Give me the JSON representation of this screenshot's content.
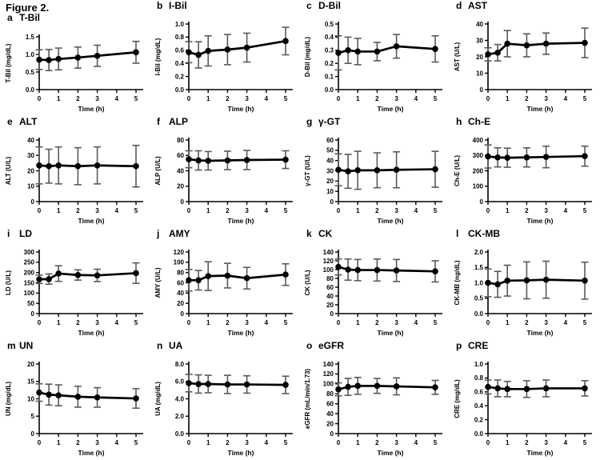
{
  "figure_title": "Figure 2.",
  "chart_data": [
    {
      "type": "line",
      "letter": "a",
      "title": "T-Bil",
      "ylabel": "T-Bil (mg/dL)",
      "xlabel": "Time (h)",
      "ylim": [
        0,
        1.5
      ],
      "yticks": [
        "0.0",
        "0.5",
        "1.0",
        "1.5"
      ],
      "xticks": [
        "0",
        "1",
        "2",
        "3",
        "4",
        "5"
      ],
      "x": [
        0,
        0.5,
        1,
        2,
        3,
        5
      ],
      "values": [
        0.85,
        0.84,
        0.87,
        0.91,
        0.96,
        1.06
      ],
      "errors": [
        0.28,
        0.3,
        0.31,
        0.3,
        0.3,
        0.31
      ]
    },
    {
      "type": "line",
      "letter": "b",
      "title": "I-Bil",
      "ylabel": "I-Bil (mg/dL)",
      "xlabel": "Time (h)",
      "ylim": [
        0,
        1.0
      ],
      "yticks": [
        "0.0",
        "0.2",
        "0.4",
        "0.6",
        "0.8",
        "1.0"
      ],
      "xticks": [
        "0",
        "1",
        "2",
        "3",
        "4",
        "5"
      ],
      "x": [
        0,
        0.5,
        1,
        2,
        3,
        5
      ],
      "values": [
        0.57,
        0.53,
        0.59,
        0.61,
        0.64,
        0.74
      ],
      "errors": [
        0.16,
        0.2,
        0.23,
        0.23,
        0.22,
        0.21
      ]
    },
    {
      "type": "line",
      "letter": "c",
      "title": "D-Bil",
      "ylabel": "D-Bil (mg/dL)",
      "xlabel": "Time (h)",
      "ylim": [
        0,
        0.5
      ],
      "yticks": [
        "0.0",
        "0.1",
        "0.2",
        "0.3",
        "0.4",
        "0.5"
      ],
      "xticks": [
        "0",
        "1",
        "2",
        "3",
        "4",
        "5"
      ],
      "x": [
        0,
        0.5,
        1,
        2,
        3,
        5
      ],
      "values": [
        0.28,
        0.3,
        0.29,
        0.29,
        0.33,
        0.31
      ],
      "errors": [
        0.13,
        0.1,
        0.1,
        0.07,
        0.09,
        0.1
      ]
    },
    {
      "type": "line",
      "letter": "d",
      "title": "AST",
      "ylabel": "AST (U/L)",
      "xlabel": "Time (h)",
      "ylim": [
        0,
        40
      ],
      "yticks": [
        "0",
        "10",
        "20",
        "30",
        "40"
      ],
      "xticks": [
        "0",
        "1",
        "2",
        "3",
        "4",
        "5"
      ],
      "x": [
        0,
        0.5,
        1,
        2,
        3,
        5
      ],
      "values": [
        21.5,
        22.5,
        28,
        27,
        28,
        28.5
      ],
      "errors": [
        4,
        5,
        8,
        7,
        6.5,
        9
      ]
    },
    {
      "type": "line",
      "letter": "e",
      "title": "ALT",
      "ylabel": "ALT (U/L)",
      "xlabel": "Time (h)",
      "ylim": [
        0,
        40
      ],
      "yticks": [
        "0",
        "10",
        "20",
        "30",
        "40"
      ],
      "xticks": [
        "0",
        "1",
        "2",
        "3",
        "4",
        "5"
      ],
      "x": [
        0,
        0.5,
        1,
        2,
        3,
        5
      ],
      "values": [
        23.5,
        23,
        23.5,
        23,
        23.5,
        23
      ],
      "errors": [
        12,
        11,
        12,
        12,
        12,
        13.5
      ]
    },
    {
      "type": "line",
      "letter": "f",
      "title": "ALP",
      "ylabel": "ALP (U/L)",
      "xlabel": "Time (h)",
      "ylim": [
        0,
        80
      ],
      "yticks": [
        "0",
        "20",
        "40",
        "60",
        "80"
      ],
      "xticks": [
        "0",
        "1",
        "2",
        "3",
        "4",
        "5"
      ],
      "x": [
        0,
        0.5,
        1,
        2,
        3,
        5
      ],
      "values": [
        55,
        53.5,
        53,
        53.5,
        54,
        54.5
      ],
      "errors": [
        11,
        12.5,
        12,
        12,
        12.5,
        11.5
      ]
    },
    {
      "type": "line",
      "letter": "g",
      "title": "γ-GT",
      "ylabel": "γ-GT (U/L)",
      "xlabel": "Time (h)",
      "ylim": [
        0,
        60
      ],
      "yticks": [
        "0",
        "10",
        "20",
        "30",
        "40",
        "50",
        "60"
      ],
      "xticks": [
        "0",
        "1",
        "2",
        "3",
        "4",
        "5"
      ],
      "x": [
        0,
        0.5,
        1,
        2,
        3,
        5
      ],
      "values": [
        31,
        29.5,
        30.5,
        30.5,
        31,
        31.5
      ],
      "errors": [
        15.5,
        16.5,
        18.5,
        17,
        17.5,
        17.5
      ]
    },
    {
      "type": "line",
      "letter": "h",
      "title": "Ch-E",
      "ylabel": "Ch-E (U/L)",
      "xlabel": "Time (h)",
      "ylim": [
        0,
        400
      ],
      "yticks": [
        "0",
        "100",
        "200",
        "300",
        "400"
      ],
      "xticks": [
        "0",
        "1",
        "2",
        "3",
        "4",
        "5"
      ],
      "x": [
        0,
        0.5,
        1,
        2,
        3,
        5
      ],
      "values": [
        293,
        287,
        285,
        287,
        290,
        295
      ],
      "errors": [
        75,
        62,
        62,
        62,
        70,
        65
      ]
    },
    {
      "type": "line",
      "letter": "i",
      "title": "LD",
      "ylabel": "LD (U/L)",
      "xlabel": "Time (h)",
      "ylim": [
        0,
        300
      ],
      "yticks": [
        "0",
        "50",
        "100",
        "150",
        "200",
        "250",
        "300"
      ],
      "xticks": [
        "0",
        "1",
        "2",
        "3",
        "4",
        "5"
      ],
      "x": [
        0,
        0.5,
        1,
        2,
        3,
        5
      ],
      "values": [
        167,
        168,
        195,
        188,
        186,
        197
      ],
      "errors": [
        20,
        25,
        38,
        25,
        30,
        50
      ]
    },
    {
      "type": "line",
      "letter": "j",
      "title": "AMY",
      "ylabel": "AMY (U/L)",
      "xlabel": "Time (h)",
      "ylim": [
        0,
        120
      ],
      "yticks": [
        "0",
        "20",
        "40",
        "60",
        "80",
        "100",
        "120"
      ],
      "xticks": [
        "0",
        "1",
        "2",
        "3",
        "4",
        "5"
      ],
      "x": [
        0,
        0.5,
        1,
        2,
        3,
        5
      ],
      "values": [
        65,
        65,
        73,
        74,
        69,
        76
      ],
      "errors": [
        21,
        19,
        28,
        24,
        21,
        21
      ]
    },
    {
      "type": "line",
      "letter": "k",
      "title": "CK",
      "ylabel": "CK (U/L)",
      "xlabel": "Time (h)",
      "ylim": [
        0,
        140
      ],
      "yticks": [
        "0",
        "20",
        "40",
        "60",
        "80",
        "100",
        "120",
        "140"
      ],
      "xticks": [
        "0",
        "1",
        "2",
        "3",
        "4",
        "5"
      ],
      "x": [
        0,
        0.5,
        1,
        2,
        3,
        5
      ],
      "values": [
        106,
        100,
        99,
        99,
        98,
        96
      ],
      "errors": [
        18,
        24,
        24,
        25,
        25,
        24
      ]
    },
    {
      "type": "line",
      "letter": "l",
      "title": "CK-MB",
      "ylabel": "CK-MB (ng/dL)",
      "xlabel": "Time (h)",
      "ylim": [
        0,
        2.0
      ],
      "yticks": [
        "0.0",
        "0.5",
        "1.0",
        "1.5",
        "2.0"
      ],
      "xticks": [
        "0",
        "1",
        "2",
        "3",
        "4",
        "5"
      ],
      "x": [
        0,
        0.5,
        1,
        2,
        3,
        5
      ],
      "values": [
        1.0,
        0.95,
        1.07,
        1.08,
        1.1,
        1.07
      ],
      "errors": [
        0.45,
        0.42,
        0.5,
        0.6,
        0.6,
        0.6
      ]
    },
    {
      "type": "line",
      "letter": "m",
      "title": "UN",
      "ylabel": "UN (mg/dL)",
      "xlabel": "Time (h)",
      "ylim": [
        0,
        20
      ],
      "yticks": [
        "0",
        "5",
        "10",
        "15",
        "20"
      ],
      "xticks": [
        "0",
        "1",
        "2",
        "3",
        "4",
        "5"
      ],
      "x": [
        0,
        0.5,
        1,
        2,
        3,
        5
      ],
      "values": [
        11.8,
        11.2,
        11.0,
        10.6,
        10.4,
        10.1
      ],
      "errors": [
        2.5,
        3,
        3,
        3,
        2.8,
        2.8
      ]
    },
    {
      "type": "line",
      "letter": "n",
      "title": "UA",
      "ylabel": "UA (mg/dL)",
      "xlabel": "Time (h)",
      "ylim": [
        0,
        8
      ],
      "yticks": [
        "0.0",
        "2.0",
        "4.0",
        "6.0",
        "8.0"
      ],
      "xticks": [
        "0",
        "1",
        "2",
        "3",
        "4",
        "5"
      ],
      "x": [
        0,
        0.5,
        1,
        2,
        3,
        5
      ],
      "values": [
        5.8,
        5.7,
        5.7,
        5.65,
        5.65,
        5.6
      ],
      "errors": [
        1.0,
        1.05,
        1.0,
        1.05,
        1.0,
        1.0
      ]
    },
    {
      "type": "line",
      "letter": "o",
      "title": "eGFR",
      "ylabel": "eGFR (mL/min/1.73)",
      "xlabel": "Time (h)",
      "ylim": [
        0,
        140
      ],
      "yticks": [
        "0",
        "20",
        "40",
        "60",
        "80",
        "100",
        "120",
        "140"
      ],
      "xticks": [
        "0",
        "1",
        "2",
        "3",
        "4",
        "5"
      ],
      "x": [
        0,
        0.5,
        1,
        2,
        3,
        5
      ],
      "values": [
        89,
        94,
        96,
        96,
        95,
        93
      ],
      "errors": [
        13,
        17,
        17,
        15,
        17,
        14
      ]
    },
    {
      "type": "line",
      "letter": "p",
      "title": "CRE",
      "ylabel": "CRE (mg/dL)",
      "xlabel": "Time (h)",
      "ylim": [
        0,
        1.0
      ],
      "yticks": [
        "0.0",
        "0.2",
        "0.4",
        "0.6",
        "0.8",
        "1.0"
      ],
      "xticks": [
        "0",
        "1",
        "2",
        "3",
        "4",
        "5"
      ],
      "x": [
        0,
        0.5,
        1,
        2,
        3,
        5
      ],
      "values": [
        0.67,
        0.65,
        0.64,
        0.64,
        0.65,
        0.65
      ],
      "errors": [
        0.1,
        0.12,
        0.11,
        0.12,
        0.12,
        0.11
      ]
    }
  ],
  "colors": {
    "line": "#000000",
    "marker": "#000000",
    "errorbar": "#595959",
    "text": "#000000",
    "background": "#ffffff"
  }
}
